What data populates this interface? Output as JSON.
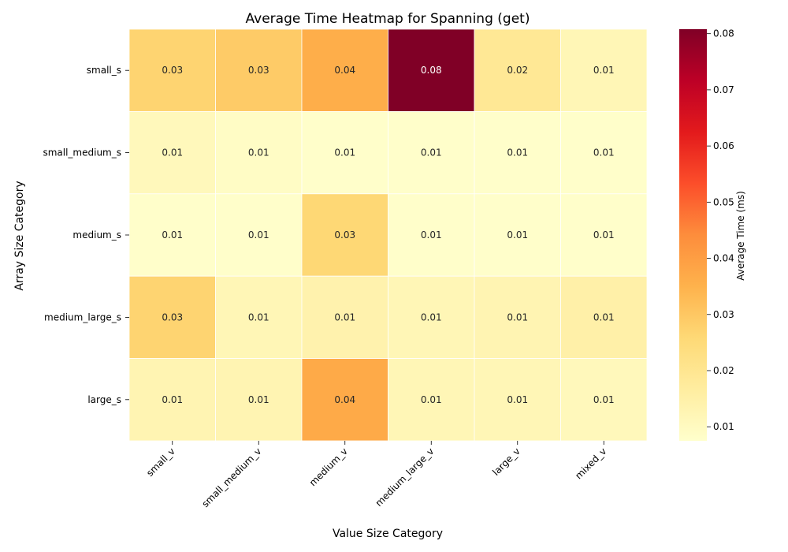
{
  "chart_data": {
    "type": "heatmap",
    "title": "Average Time Heatmap for Spanning (get)",
    "xlabel": "Value Size Category",
    "ylabel": "Array Size Category",
    "x_categories": [
      "small_v",
      "small_medium_v",
      "medium_v",
      "medium_large_v",
      "large_v",
      "mixed_v"
    ],
    "y_categories": [
      "small_s",
      "small_medium_s",
      "medium_s",
      "medium_large_s",
      "large_s"
    ],
    "values": [
      [
        0.027,
        0.029,
        0.036,
        0.081,
        0.019,
        0.012
      ],
      [
        0.011,
        0.009,
        0.008,
        0.008,
        0.008,
        0.008
      ],
      [
        0.008,
        0.008,
        0.026,
        0.008,
        0.008,
        0.008
      ],
      [
        0.027,
        0.012,
        0.014,
        0.012,
        0.013,
        0.015
      ],
      [
        0.013,
        0.013,
        0.037,
        0.012,
        0.012,
        0.011
      ]
    ],
    "annotations": [
      [
        "0.03",
        "0.03",
        "0.04",
        "0.08",
        "0.02",
        "0.01"
      ],
      [
        "0.01",
        "0.01",
        "0.01",
        "0.01",
        "0.01",
        "0.01"
      ],
      [
        "0.01",
        "0.01",
        "0.03",
        "0.01",
        "0.01",
        "0.01"
      ],
      [
        "0.03",
        "0.01",
        "0.01",
        "0.01",
        "0.01",
        "0.01"
      ],
      [
        "0.01",
        "0.01",
        "0.04",
        "0.01",
        "0.01",
        "0.01"
      ]
    ],
    "colorbar": {
      "label": "Average Time (ms)",
      "min": 0.0075,
      "max": 0.0808,
      "ticks": [
        0.01,
        0.02,
        0.03,
        0.04,
        0.05,
        0.06,
        0.07,
        0.08
      ],
      "tick_labels": [
        "0.01",
        "0.02",
        "0.03",
        "0.04",
        "0.05",
        "0.06",
        "0.07",
        "0.08"
      ],
      "colormap": "YlOrRd",
      "colors": [
        "#ffffcc",
        "#ffeda0",
        "#fed976",
        "#feb24c",
        "#fd8d3c",
        "#fc4e2a",
        "#e31a1c",
        "#bd0026",
        "#800026"
      ]
    }
  }
}
